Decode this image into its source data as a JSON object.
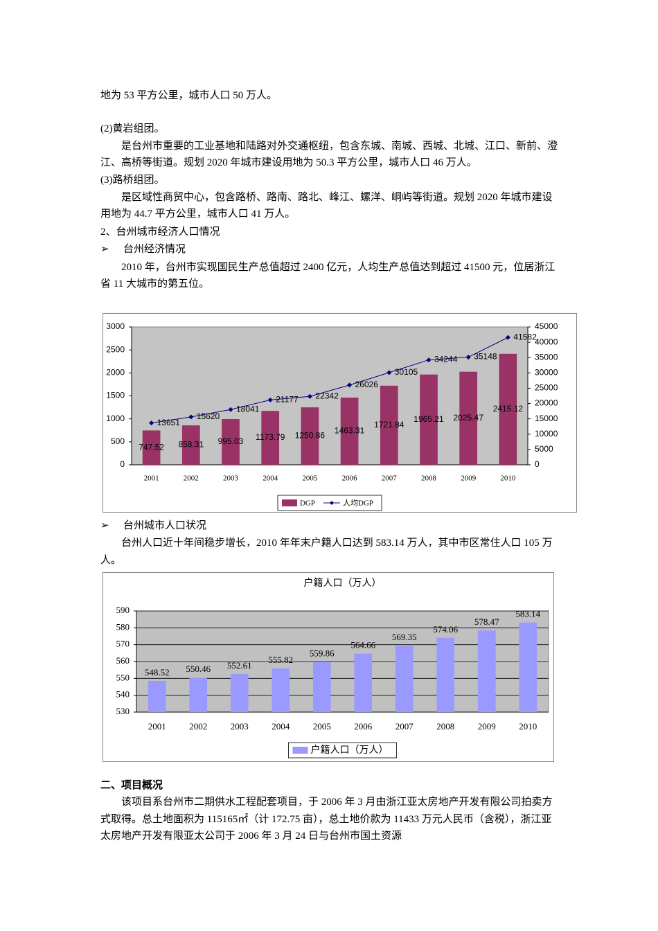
{
  "paragraphs": [
    {
      "kind": "plain",
      "text": "地为 53 平方公里，城市人口 50 万人。"
    },
    {
      "kind": "plain",
      "text": "(2)黄岩组团。"
    },
    {
      "kind": "indent",
      "text": "是台州市重要的工业基地和陆路对外交通枢纽，包含东城、南城、西城、北城、江口、新前、澄江、高桥等街道。规划 2020 年城市建设用地为 50.3 平方公里，城市人口 46 万人。"
    },
    {
      "kind": "plain",
      "text": "(3)路桥组团。"
    },
    {
      "kind": "indent",
      "text": "是区域性商贸中心，包含路桥、路南、路北、峰江、螺洋、峒屿等街道。规划 2020 年城市建设用地为 44.7 平方公里，城市人口 41 万人。"
    },
    {
      "kind": "plain",
      "text": "2、台州城市经济人口情况"
    },
    {
      "kind": "bullet",
      "text": "台州经济情况"
    },
    {
      "kind": "indent",
      "text": "2010 年，台州市实现国民生产总值超过 2400 亿元，人均生产总值达到超过 41500 元，位居浙江省 11 大城市的第五位。"
    },
    {
      "kind": "bullet",
      "text": "台州城市人口状况"
    },
    {
      "kind": "indent",
      "text": "台州人口近十年间稳步增长，2010 年年末户籍人口达到 583.14 万人，其中市区常住人口 105 万人。"
    },
    {
      "kind": "heading",
      "text": "二、项目概况"
    },
    {
      "kind": "indent",
      "text": "该项目系台州市二期供水工程配套项目，于 2006 年 3 月由浙江亚太房地产开发有限公司拍卖方式取得。总土地面积为 115165㎡（计 172.75 亩），总土地价款为 11433 万元人民币（含税），浙江亚太房地产开发有限亚太公司于 2006 年 3 月 24 日与台州市国土资源"
    }
  ],
  "chart_data": [
    {
      "type": "bar",
      "categories": [
        "2001",
        "2002",
        "2003",
        "2004",
        "2005",
        "2006",
        "2007",
        "2008",
        "2009",
        "2010"
      ],
      "series": [
        {
          "name": "DGP",
          "color": "#993366",
          "values": [
            747.52,
            858.31,
            995.03,
            1173.79,
            1250.86,
            1463.31,
            1721.84,
            1965.21,
            2025.47,
            2415.12
          ]
        },
        {
          "name": "人均DGP",
          "color": "#000080",
          "type": "line",
          "axis": "y2",
          "values": [
            13651,
            15620,
            18041,
            21177,
            22342,
            26026,
            30105,
            34244,
            35148,
            41582
          ]
        }
      ],
      "ylim": [
        0,
        3000
      ],
      "yticks": [
        0,
        500,
        1000,
        1500,
        2000,
        2500,
        3000
      ],
      "y2lim": [
        0,
        45000
      ],
      "y2ticks": [
        0,
        5000,
        10000,
        15000,
        20000,
        25000,
        30000,
        35000,
        40000,
        45000
      ],
      "grid": false,
      "legend": "bottom"
    },
    {
      "type": "bar",
      "title": "户籍人口（万人）",
      "categories": [
        "2001",
        "2002",
        "2003",
        "2004",
        "2005",
        "2006",
        "2007",
        "2008",
        "2009",
        "2010"
      ],
      "series": [
        {
          "name": "户籍人口（万人）",
          "color": "#9999ff",
          "values": [
            548.52,
            550.46,
            552.61,
            555.82,
            559.86,
            564.66,
            569.35,
            574.06,
            578.47,
            583.14
          ]
        }
      ],
      "ylim": [
        530,
        590
      ],
      "yticks": [
        530,
        540,
        550,
        560,
        570,
        580,
        590
      ],
      "grid": true,
      "legend": "bottom"
    }
  ]
}
